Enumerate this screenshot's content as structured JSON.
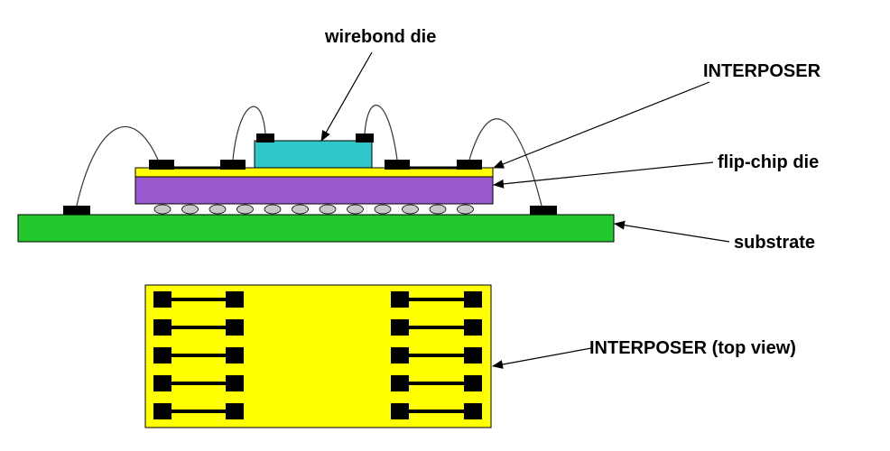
{
  "labels": {
    "wirebond_die": "wirebond die",
    "interposer": "INTERPOSER",
    "flip_chip_die": "flip-chip die",
    "substrate": "substrate",
    "interposer_top_view": "INTERPOSER (top view)"
  },
  "colors": {
    "substrate": "#22c82c",
    "flip_chip_die": "#9b59cf",
    "interposer": "#ffff00",
    "wirebond_die": "#2fc7c9",
    "bump": "#c8c8c8",
    "pad": "#000000"
  },
  "top_view": {
    "rows": 5,
    "columns": 2
  }
}
